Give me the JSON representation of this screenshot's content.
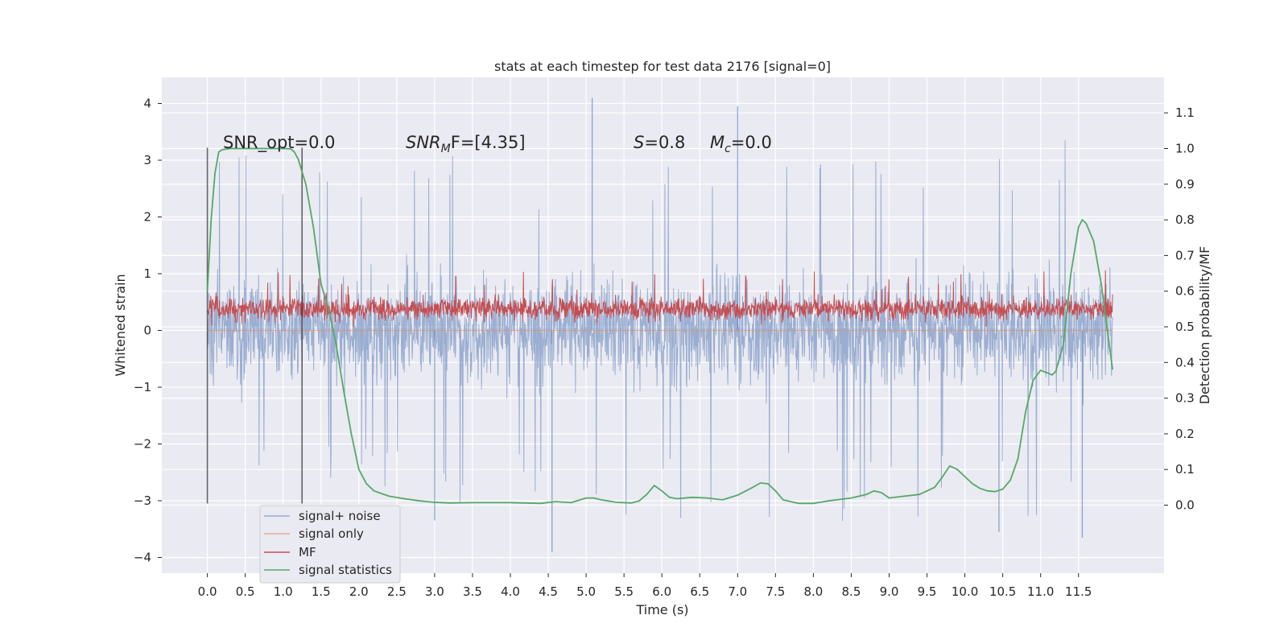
{
  "chart_data": {
    "type": "line",
    "title": "stats at each timestep for test data 2176 [signal=0]",
    "xlabel": "Time (s)",
    "ylabel_left": "Whitened strain",
    "ylabel_right": "Detection probability/MF",
    "xlim": [
      -0.58,
      12.6
    ],
    "ylim_left": [
      -4.3,
      4.45
    ],
    "ylim_right": [
      -0.2,
      1.18
    ],
    "xticks": [
      0.0,
      0.5,
      1.0,
      1.5,
      2.0,
      2.5,
      3.0,
      3.5,
      4.0,
      4.5,
      5.0,
      5.5,
      6.0,
      6.5,
      7.0,
      7.5,
      8.0,
      8.5,
      9.0,
      9.5,
      10.0,
      10.5,
      11.0,
      11.5
    ],
    "xtick_labels": [
      "0.0",
      "0.5",
      "1.0",
      "1.5",
      "2.0",
      "2.5",
      "3.0",
      "3.5",
      "4.0",
      "4.5",
      "5.0",
      "5.5",
      "6.0",
      "6.5",
      "7.0",
      "7.5",
      "8.0",
      "8.5",
      "9.0",
      "9.5",
      "10.0",
      "10.5",
      "11.0",
      "11.5"
    ],
    "yticks_left": [
      -4,
      -3,
      -2,
      -1,
      0,
      1,
      2,
      3,
      4
    ],
    "ytick_labels_left": [
      "−4",
      "−3",
      "−2",
      "−1",
      "0",
      "1",
      "2",
      "3",
      "4"
    ],
    "yticks_right": [
      0.0,
      0.1,
      0.2,
      0.3,
      0.4,
      0.5,
      0.6,
      0.7,
      0.8,
      0.9,
      1.0,
      1.1
    ],
    "ytick_labels_right": [
      "0.0",
      "0.1",
      "0.2",
      "0.3",
      "0.4",
      "0.5",
      "0.6",
      "0.7",
      "0.8",
      "0.9",
      "1.0",
      "1.1"
    ],
    "grid": true,
    "legend_position": "lower-left",
    "annotations": {
      "snr_opt": "SNR_opt=0.0",
      "snr_mf_name": "SNR",
      "snr_mf_sub": "M",
      "snr_mf_rest": "F=[4.35]",
      "s_name": "S",
      "s_rest": "=0.8",
      "mc_name": "M",
      "mc_sub": "c",
      "mc_rest": "=0.0"
    },
    "markers_x": [
      0.0,
      1.25
    ],
    "series": [
      {
        "name": "signal+ noise",
        "axis": "left",
        "color": "#4c72b0",
        "description": "noise band approx -1.2 to 1.3 with spikes to about 4.1 and -3.9",
        "x_range": [
          0.0,
          11.95
        ],
        "core_range": [
          -1.2,
          1.3
        ],
        "extremes": [
          -3.9,
          4.1
        ]
      },
      {
        "name": "signal only",
        "axis": "left",
        "color": "#dd8452",
        "x": [
          0.0,
          11.95
        ],
        "y": [
          0.0,
          0.0
        ]
      },
      {
        "name": "MF",
        "axis": "right",
        "color": "#c44e52",
        "x_range": [
          0.0,
          11.95
        ],
        "core_range": [
          0.5,
          0.6
        ],
        "extremes": [
          0.49,
          0.66
        ]
      },
      {
        "name": "signal statistics",
        "axis": "right",
        "color": "#55a868",
        "x": [
          0.0,
          0.05,
          0.1,
          0.15,
          0.2,
          0.3,
          0.5,
          0.7,
          0.9,
          1.0,
          1.1,
          1.15,
          1.2,
          1.3,
          1.4,
          1.5,
          1.6,
          1.7,
          1.8,
          1.9,
          2.0,
          2.1,
          2.2,
          2.4,
          2.6,
          2.8,
          3.0,
          3.2,
          3.5,
          4.0,
          4.4,
          4.6,
          4.8,
          5.0,
          5.1,
          5.2,
          5.4,
          5.6,
          5.7,
          5.8,
          5.9,
          6.0,
          6.1,
          6.2,
          6.4,
          6.6,
          6.8,
          7.0,
          7.2,
          7.3,
          7.4,
          7.5,
          7.6,
          7.8,
          8.0,
          8.2,
          8.5,
          8.7,
          8.8,
          8.9,
          9.0,
          9.2,
          9.4,
          9.6,
          9.7,
          9.8,
          9.9,
          10.0,
          10.1,
          10.2,
          10.3,
          10.4,
          10.5,
          10.6,
          10.7,
          10.8,
          10.9,
          11.0,
          11.1,
          11.15,
          11.2,
          11.3,
          11.4,
          11.5,
          11.55,
          11.6,
          11.7,
          11.8,
          11.9,
          11.95
        ],
        "y": [
          0.6,
          0.8,
          0.93,
          0.99,
          0.997,
          1.0,
          1.0,
          1.0,
          1.0,
          1.0,
          0.999,
          0.99,
          0.97,
          0.9,
          0.78,
          0.62,
          0.55,
          0.45,
          0.32,
          0.2,
          0.1,
          0.06,
          0.04,
          0.025,
          0.018,
          0.012,
          0.008,
          0.006,
          0.007,
          0.007,
          0.005,
          0.01,
          0.007,
          0.02,
          0.02,
          0.015,
          0.008,
          0.006,
          0.012,
          0.03,
          0.055,
          0.04,
          0.022,
          0.018,
          0.022,
          0.02,
          0.015,
          0.028,
          0.05,
          0.062,
          0.06,
          0.04,
          0.015,
          0.005,
          0.005,
          0.012,
          0.02,
          0.03,
          0.04,
          0.035,
          0.02,
          0.025,
          0.03,
          0.05,
          0.078,
          0.11,
          0.1,
          0.08,
          0.06,
          0.047,
          0.04,
          0.038,
          0.045,
          0.07,
          0.13,
          0.26,
          0.35,
          0.378,
          0.37,
          0.365,
          0.375,
          0.45,
          0.65,
          0.78,
          0.8,
          0.79,
          0.74,
          0.62,
          0.46,
          0.38
        ]
      }
    ]
  }
}
